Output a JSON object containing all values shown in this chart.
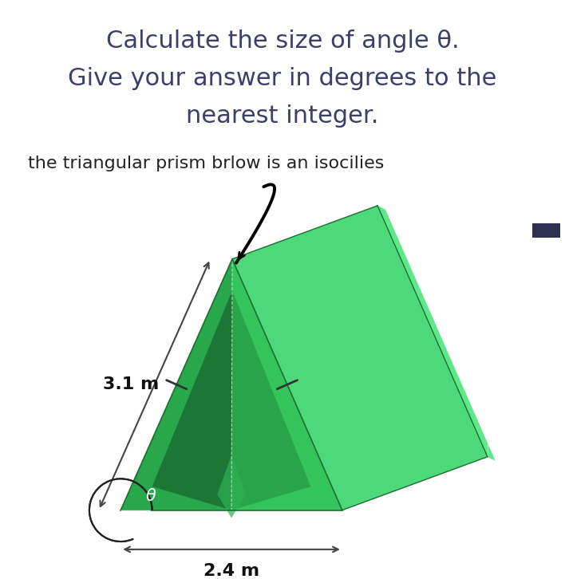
{
  "title_line1": "Calculate the size of angle θ.",
  "title_line2": "Give your answer in degrees to the",
  "title_line3": "nearest integer.",
  "subtitle": "the triangular prism brlow is an isocilies",
  "label_side": "3.1 m",
  "label_base": "2.4 m",
  "label_angle": "θ",
  "bg_color": "#ffffff",
  "text_color": "#3a4068",
  "subtitle_color": "#222222",
  "green_front_left": "#28a84a",
  "green_front_right": "#33c45c",
  "green_right_face": "#4dd97a",
  "green_right_face_far": "#5ee88a",
  "green_inner_dark": "#1a6e32",
  "green_inner_med": "#22913f",
  "green_inner_light": "#2db352",
  "arrow_color": "#444444",
  "tick_color": "#333333"
}
